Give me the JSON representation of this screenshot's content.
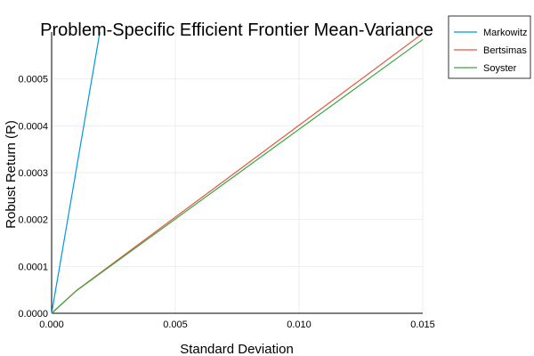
{
  "chart_data": {
    "type": "line",
    "title": "Problem-Specific Efficient Frontier Mean-Variance",
    "xlabel": "Standard Deviation",
    "ylabel": "Robust Return (R)",
    "xlim": [
      0,
      0.015
    ],
    "ylim": [
      0,
      0.0006
    ],
    "x_ticks": [
      "0.000",
      "0.005",
      "0.010",
      "0.015"
    ],
    "y_ticks": [
      "0.0000",
      "0.0001",
      "0.0002",
      "0.0003",
      "0.0004",
      "0.0005"
    ],
    "grid": true,
    "legend_position": "top-right",
    "series": [
      {
        "name": "Markowitz",
        "color": "#0099DD",
        "points": [
          [
            0,
            0
          ],
          [
            0.00195,
            0.0006
          ]
        ]
      },
      {
        "name": "Bertsimas",
        "color": "#E8543D",
        "points": [
          [
            0,
            0
          ],
          [
            0.001,
            4.85e-05
          ],
          [
            0.015,
            0.000597
          ]
        ]
      },
      {
        "name": "Soyster",
        "color": "#3BA642",
        "points": [
          [
            0,
            0
          ],
          [
            0.001,
            4.8e-05
          ],
          [
            0.015,
            0.000584
          ]
        ]
      }
    ]
  }
}
